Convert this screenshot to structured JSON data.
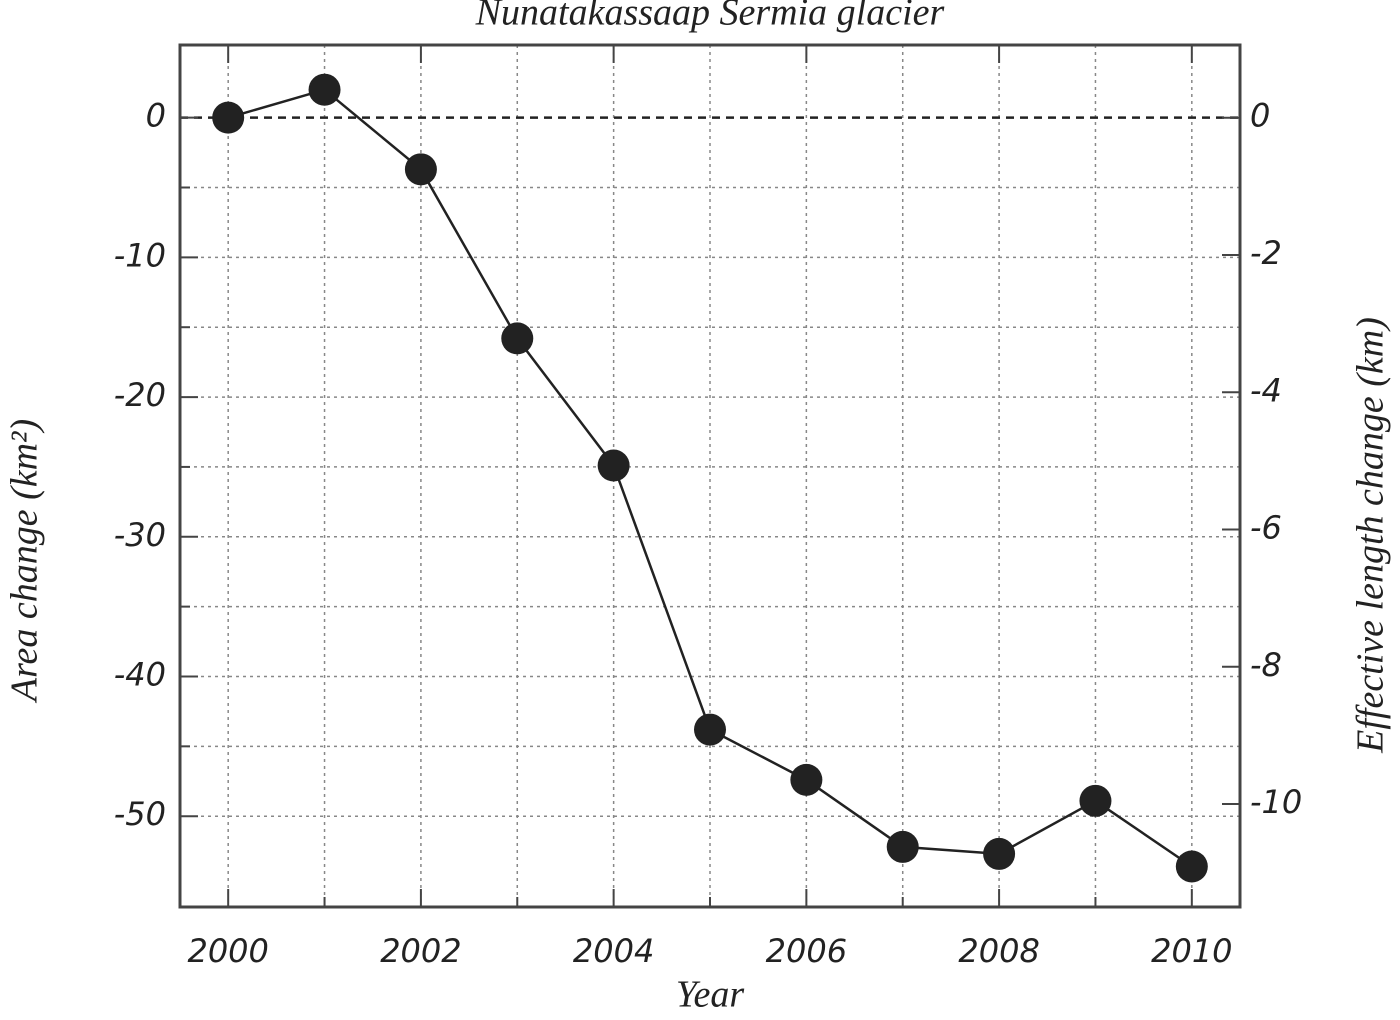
{
  "chart_data": {
    "type": "line",
    "title": "Nunatakassaap Sermia glacier",
    "xlabel": "Year",
    "ylabel": "Area change (km²)",
    "y2label": "Effective length change (km)",
    "x": [
      2000,
      2001,
      2002,
      2003,
      2004,
      2005,
      2006,
      2007,
      2008,
      2009,
      2010
    ],
    "series": [
      {
        "color": "#222222",
        "values": [
          0,
          2,
          -3.7,
          -15.8,
          -24.9,
          -43.8,
          -47.4,
          -52.2,
          -52.7,
          -48.9,
          -53.6
        ]
      }
    ],
    "xlim": [
      1999.5,
      2010.5
    ],
    "xticks": [
      2000,
      2002,
      2004,
      2006,
      2008,
      2010
    ],
    "ylim": [
      -56.5,
      5.2
    ],
    "yticks": [
      0,
      -10,
      -20,
      -30,
      -40,
      -50
    ],
    "y2lim": [
      -11.5,
      1.06
    ],
    "y2ticks": [
      0,
      -2,
      -4,
      -6,
      -8,
      -10
    ],
    "grid": true
  }
}
